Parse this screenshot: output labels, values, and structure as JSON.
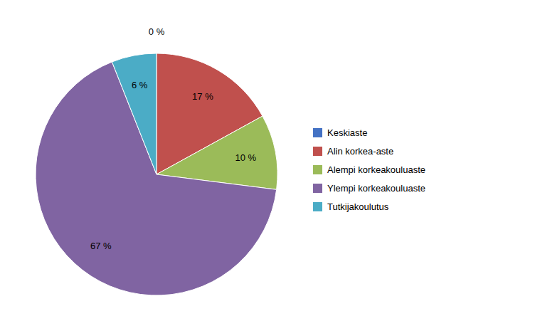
{
  "chart_data": {
    "type": "pie",
    "categories": [
      "Keskiaste",
      "Alin korkea-aste",
      "Alempi korkeakouluaste",
      "Ylempi korkeakouluaste",
      "Tutkijakoulutus"
    ],
    "values": [
      0,
      17,
      10,
      67,
      6
    ],
    "value_labels": [
      "0 %",
      "17 %",
      "10 %",
      "67 %",
      "6 %"
    ],
    "colors": [
      "#4472C4",
      "#C0504D",
      "#9BBB59",
      "#8064A2",
      "#4BACC6"
    ],
    "data_labels": true,
    "legend": "right"
  }
}
